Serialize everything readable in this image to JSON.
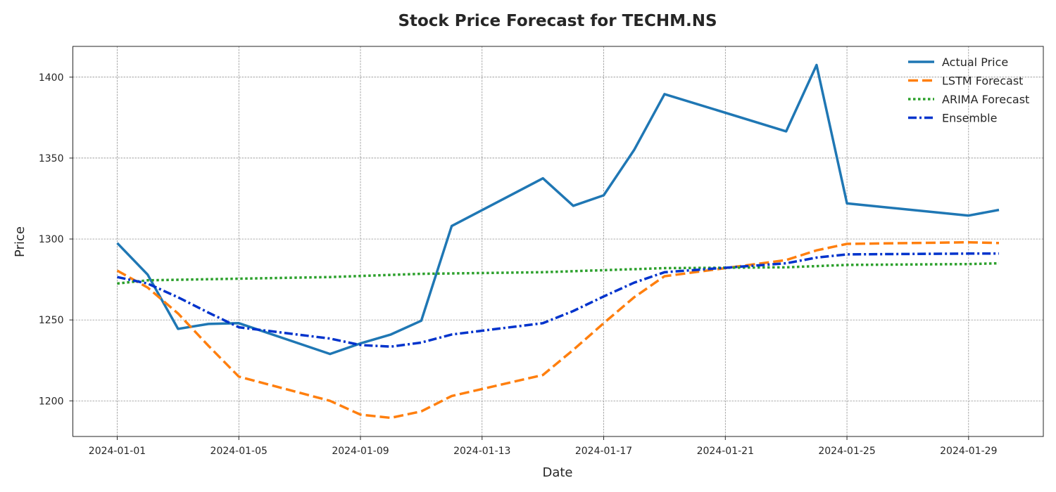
{
  "chart_data": {
    "type": "line",
    "title": "Stock Price Forecast for TECHM.NS",
    "xlabel": "Date",
    "ylabel": "Price",
    "x_tick_labels": [
      "2024-01-01",
      "2024-01-05",
      "2024-01-09",
      "2024-01-13",
      "2024-01-17",
      "2024-01-21",
      "2024-01-25",
      "2024-01-29"
    ],
    "x_tick_dates": [
      "2024-01-01",
      "2024-01-05",
      "2024-01-09",
      "2024-01-13",
      "2024-01-17",
      "2024-01-21",
      "2024-01-25",
      "2024-01-29"
    ],
    "xlim": [
      "2023-12-30T13:00",
      "2024-01-31T11:00"
    ],
    "y_ticks": [
      1200,
      1250,
      1300,
      1350,
      1400
    ],
    "ylim": [
      1178,
      1419
    ],
    "grid": true,
    "legend_position": "top-right",
    "series": [
      {
        "name": "Actual Price",
        "color": "#1f77b4",
        "dash": "solid",
        "points": [
          [
            "2024-01-01",
            1297.5
          ],
          [
            "2024-01-02",
            1278
          ],
          [
            "2024-01-03",
            1244.5
          ],
          [
            "2024-01-04",
            1247.5
          ],
          [
            "2024-01-05",
            1248
          ],
          [
            "2024-01-08",
            1229
          ],
          [
            "2024-01-09",
            1235.5
          ],
          [
            "2024-01-10",
            1241
          ],
          [
            "2024-01-11",
            1249.5
          ],
          [
            "2024-01-12",
            1308
          ],
          [
            "2024-01-15",
            1337.5
          ],
          [
            "2024-01-16",
            1320.5
          ],
          [
            "2024-01-17",
            1327
          ],
          [
            "2024-01-18",
            1355
          ],
          [
            "2024-01-19",
            1389.5
          ],
          [
            "2024-01-23",
            1366.5
          ],
          [
            "2024-01-24",
            1407.5
          ],
          [
            "2024-01-25",
            1322
          ],
          [
            "2024-01-29",
            1314.5
          ],
          [
            "2024-01-30",
            1318
          ]
        ]
      },
      {
        "name": "LSTM Forecast",
        "color": "#ff7f0e",
        "dash": "dashed",
        "points": [
          [
            "2024-01-01",
            1280.5
          ],
          [
            "2024-01-02",
            1270
          ],
          [
            "2024-01-03",
            1254
          ],
          [
            "2024-01-04",
            1234
          ],
          [
            "2024-01-05",
            1215
          ],
          [
            "2024-01-08",
            1200
          ],
          [
            "2024-01-09",
            1191.5
          ],
          [
            "2024-01-10",
            1189.5
          ],
          [
            "2024-01-11",
            1193.5
          ],
          [
            "2024-01-12",
            1203
          ],
          [
            "2024-01-15",
            1216
          ],
          [
            "2024-01-16",
            1231.5
          ],
          [
            "2024-01-17",
            1248
          ],
          [
            "2024-01-18",
            1264
          ],
          [
            "2024-01-19",
            1277
          ],
          [
            "2024-01-23",
            1287
          ],
          [
            "2024-01-24",
            1293
          ],
          [
            "2024-01-25",
            1297
          ],
          [
            "2024-01-29",
            1298
          ],
          [
            "2024-01-30",
            1297.5
          ]
        ]
      },
      {
        "name": "ARIMA Forecast",
        "color": "#2ca02c",
        "dash": "dotted",
        "points": [
          [
            "2024-01-01",
            1272.5
          ],
          [
            "2024-01-02",
            1274.5
          ],
          [
            "2024-01-05",
            1275.5
          ],
          [
            "2024-01-08",
            1276.5
          ],
          [
            "2024-01-11",
            1278.5
          ],
          [
            "2024-01-15",
            1279.5
          ],
          [
            "2024-01-19",
            1282
          ],
          [
            "2024-01-23",
            1282.5
          ],
          [
            "2024-01-25",
            1284
          ],
          [
            "2024-01-29",
            1284.5
          ],
          [
            "2024-01-30",
            1285
          ]
        ]
      },
      {
        "name": "Ensemble",
        "color": "#0033cc",
        "dash": "dashdot",
        "points": [
          [
            "2024-01-01",
            1276.5
          ],
          [
            "2024-01-02",
            1272.5
          ],
          [
            "2024-01-03",
            1264
          ],
          [
            "2024-01-04",
            1254.5
          ],
          [
            "2024-01-05",
            1245.5
          ],
          [
            "2024-01-08",
            1238.5
          ],
          [
            "2024-01-09",
            1234.5
          ],
          [
            "2024-01-10",
            1233.5
          ],
          [
            "2024-01-11",
            1236
          ],
          [
            "2024-01-12",
            1241
          ],
          [
            "2024-01-15",
            1248
          ],
          [
            "2024-01-16",
            1255.5
          ],
          [
            "2024-01-17",
            1264.5
          ],
          [
            "2024-01-18",
            1273
          ],
          [
            "2024-01-19",
            1279.5
          ],
          [
            "2024-01-23",
            1285
          ],
          [
            "2024-01-24",
            1288.5
          ],
          [
            "2024-01-25",
            1290.5
          ],
          [
            "2024-01-29",
            1291
          ],
          [
            "2024-01-30",
            1291
          ]
        ]
      }
    ]
  }
}
